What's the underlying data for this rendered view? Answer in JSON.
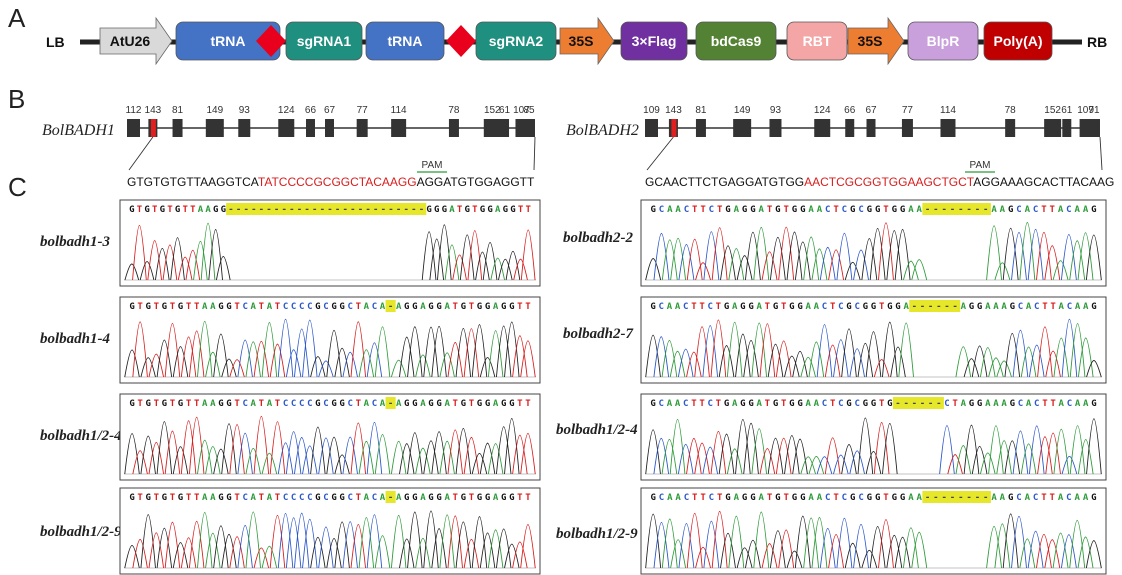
{
  "panels": {
    "a": "A",
    "b": "B",
    "c": "C"
  },
  "construct": {
    "left_border": "LB",
    "right_border": "RB",
    "elements": [
      {
        "label": "AtU26",
        "shape": "arrow",
        "fill": "#d9d9d9",
        "text": "#111111"
      },
      {
        "label": "tRNA",
        "shape": "box",
        "fill": "#4472c4",
        "text": "#ffffff"
      },
      {
        "label": "",
        "shape": "diamond",
        "fill": "#e8001c",
        "text": "#ffffff"
      },
      {
        "label": "sgRNA1",
        "shape": "box",
        "fill": "#1f8f7f",
        "text": "#ffffff"
      },
      {
        "label": "tRNA",
        "shape": "box",
        "fill": "#4472c4",
        "text": "#ffffff"
      },
      {
        "label": "",
        "shape": "diamond",
        "fill": "#e8001c",
        "text": "#ffffff"
      },
      {
        "label": "sgRNA2",
        "shape": "box",
        "fill": "#1f8f7f",
        "text": "#ffffff"
      },
      {
        "label": "35S",
        "shape": "arrow",
        "fill": "#ed7d31",
        "text": "#111111"
      },
      {
        "label": "3×Flag",
        "shape": "box",
        "fill": "#7030a0",
        "text": "#ffffff"
      },
      {
        "label": "bdCas9",
        "shape": "box",
        "fill": "#548235",
        "text": "#ffffff"
      },
      {
        "label": "RBT",
        "shape": "box",
        "fill": "#f4a6a6",
        "text": "#ffffff"
      },
      {
        "label": "35S",
        "shape": "arrow",
        "fill": "#ed7d31",
        "text": "#111111"
      },
      {
        "label": "BlpR",
        "shape": "box",
        "fill": "#c9a0dc",
        "text": "#ffffff"
      },
      {
        "label": "Poly(A)",
        "shape": "box",
        "fill": "#c00000",
        "text": "#ffffff"
      }
    ]
  },
  "genes": [
    {
      "name": "BolBADH1",
      "exon_lengths": [
        "112",
        "143",
        "81",
        "149",
        "93",
        "124",
        "66",
        "67",
        "77",
        "114",
        "78",
        "152",
        "61",
        "107",
        "85"
      ],
      "target_exon": 2,
      "pam_label": "PAM",
      "seq_prefix": "GTGTGTGTTAAGGTCA",
      "seq_target": "TATCCCCGCGGCTACAAGG",
      "seq_suffix": "AGGATGTGGAGGTT"
    },
    {
      "name": "BolBADH2",
      "exon_lengths": [
        "109",
        "143",
        "81",
        "149",
        "93",
        "124",
        "66",
        "67",
        "77",
        "114",
        "78",
        "152",
        "61",
        "107",
        "91"
      ],
      "target_exon": 2,
      "pam_label": "PAM",
      "seq_prefix": "GCAACTTCTGAGGATGTGG",
      "seq_target": "AACTCGCGGTGGAAGCTGCT",
      "seq_suffix": "AGGAAAGCACTTACAAG"
    }
  ],
  "colors": {
    "A": "#2e9b3a",
    "C": "#2b57c9",
    "G": "#111111",
    "T": "#d81e1e",
    "highlight": "#e6e62a",
    "target_text": "#d81e1e",
    "pam": "#2e9b3a"
  },
  "chromatograms": [
    {
      "label": "bolbadh1-3",
      "pre": "GTGTGTGTTAAGG",
      "gap": "--------------------------",
      "post": "GGGATGTGGAGGTT",
      "gap_frac": 0.4
    },
    {
      "label": "bolbadh1-4",
      "pre": "GTGTGTGTTAAGGTCATATCCCCGCGGCTACA",
      "gap": "-",
      "post": "AGGAGGATGTGGAGGTT",
      "gap_frac": 0.06
    },
    {
      "label": "bolbadh1/2-4",
      "pre": "GTGTGTGTTAAGGTCATATCCCCGCGGCTACA",
      "gap": "-",
      "post": "AGGAGGATGTGGAGGTT",
      "gap_frac": 0.06
    },
    {
      "label": "bolbadh1/2-9",
      "pre": "GTGTGTGTTAAGGTCATATCCCCGCGGCTACA",
      "gap": "-",
      "post": "AGGAGGATGTGGAGGTT",
      "gap_frac": 0.06
    },
    {
      "label": "bolbadh2-2",
      "pre": "GCAACTTCTGAGGATGTGGAACTCGCGGTGGAA",
      "gap": "--------",
      "post": "AAGCACTTACAAG",
      "gap_frac": 0.18
    },
    {
      "label": "bolbadh2-7",
      "pre": "GCAACTTCTGAGGATGTGGAACTCGCGGTGGA",
      "gap": "------",
      "post": "AGGAAAGCACTTACAAG",
      "gap_frac": 0.12
    },
    {
      "label": "bolbadh1/2-4",
      "pre": "GCAACTTCTGAGGATGTGGAACTCGCGGTG",
      "gap": "------",
      "post": "CTAGGAAAGCACTTACAAG",
      "gap_frac": 0.12
    },
    {
      "label": "bolbadh1/2-9",
      "pre": "GCAACTTCTGAGGATGTGGAACTCGCGGTGGAA",
      "gap": "--------",
      "post": "AAGCACTTACAAG",
      "gap_frac": 0.18
    }
  ]
}
